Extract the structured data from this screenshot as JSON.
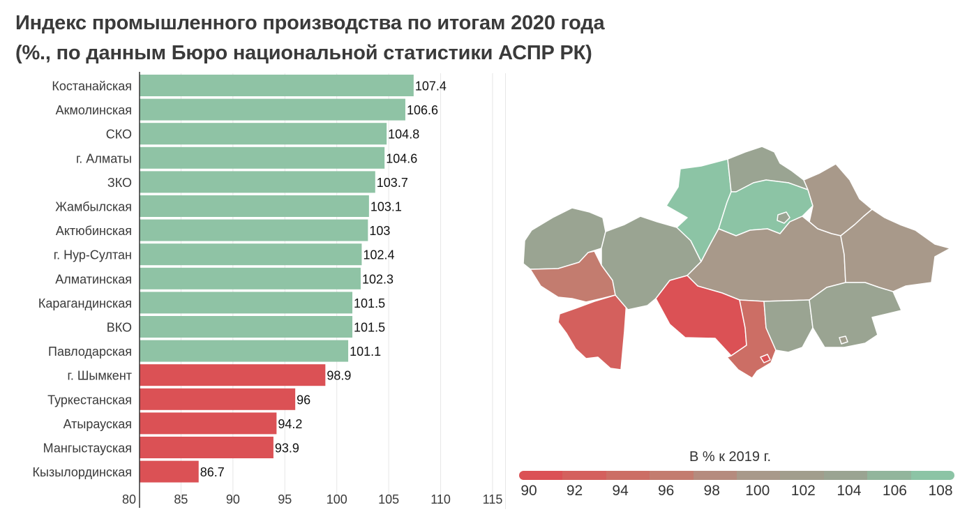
{
  "title_line1": "Индекс промышленного производства по итогам 2020 года",
  "title_line2": "(%., по данным Бюро национальной статистики АСПР РК)",
  "chart_data": {
    "type": "bar",
    "orientation": "horizontal",
    "categories": [
      "Костанайская",
      "Акмолинская",
      "СКО",
      "г. Алматы",
      "ЗКО",
      "Жамбылская",
      "Актюбинская",
      "г. Нур-Султан",
      "Алматинская",
      "Карагандинская",
      "ВКО",
      "Павлодарская",
      "г. Шымкент",
      "Туркестанская",
      "Атырауская",
      "Мангыстауская",
      "Кызылординская"
    ],
    "values": [
      107.4,
      106.6,
      104.8,
      104.6,
      103.7,
      103.1,
      103,
      102.4,
      102.3,
      101.5,
      101.5,
      101.1,
      98.9,
      96,
      94.2,
      93.9,
      86.7
    ],
    "value_labels": [
      "107.4",
      "106.6",
      "104.8",
      "104.6",
      "103.7",
      "103.1",
      "103",
      "102.4",
      "102.3",
      "101.5",
      "101.5",
      "101.1",
      "98.9",
      "96",
      "94.2",
      "93.9",
      "86.7"
    ],
    "xlim": [
      80,
      115
    ],
    "xticks": [
      "80",
      "85",
      "90",
      "95",
      "100",
      "105",
      "110",
      "115"
    ],
    "colors": {
      "above_100": "#8fc3a5",
      "below_100": "#db5155"
    },
    "grid": true
  },
  "map_legend": {
    "title": "В % к 2019 г.",
    "labels": [
      "90",
      "92",
      "94",
      "96",
      "98",
      "100",
      "102",
      "104",
      "106",
      "108"
    ],
    "colors": [
      "#db5155",
      "#d4605d",
      "#cc6e65",
      "#c37c6f",
      "#b58b7e",
      "#a8998a",
      "#a19e8d",
      "#9aa492",
      "#92b59c",
      "#8cc4a5"
    ]
  }
}
